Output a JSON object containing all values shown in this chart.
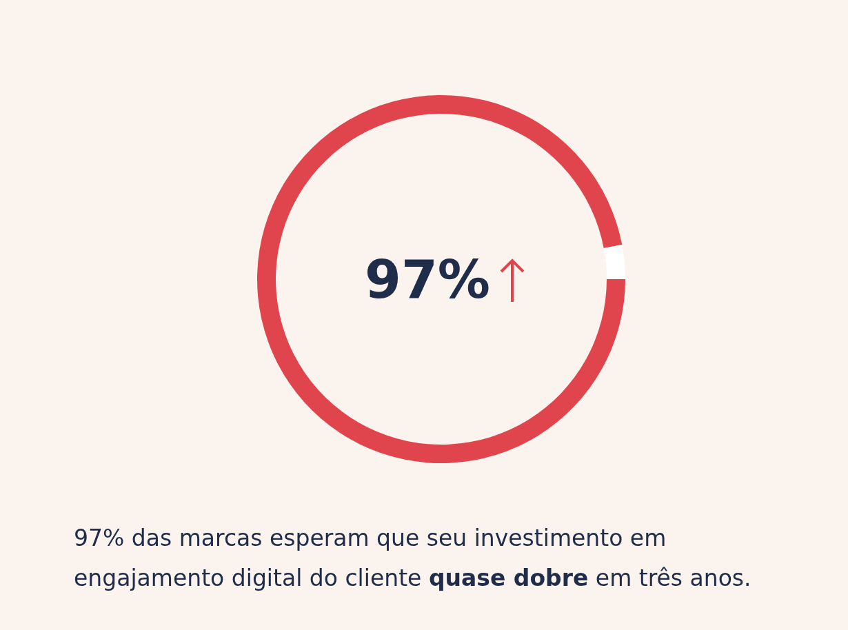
{
  "chart_data": {
    "type": "donut",
    "categories": [
      null,
      null
    ],
    "values": [
      97,
      3
    ],
    "colors": [
      "#e0454e",
      "#ffffff"
    ],
    "value_labels": [
      "97%",
      null
    ],
    "annotations": [
      "97% das marcas esperam que seu investimento em engajamento digital do cliente ",
      "quase dobre",
      " em três anos."
    ]
  }
}
